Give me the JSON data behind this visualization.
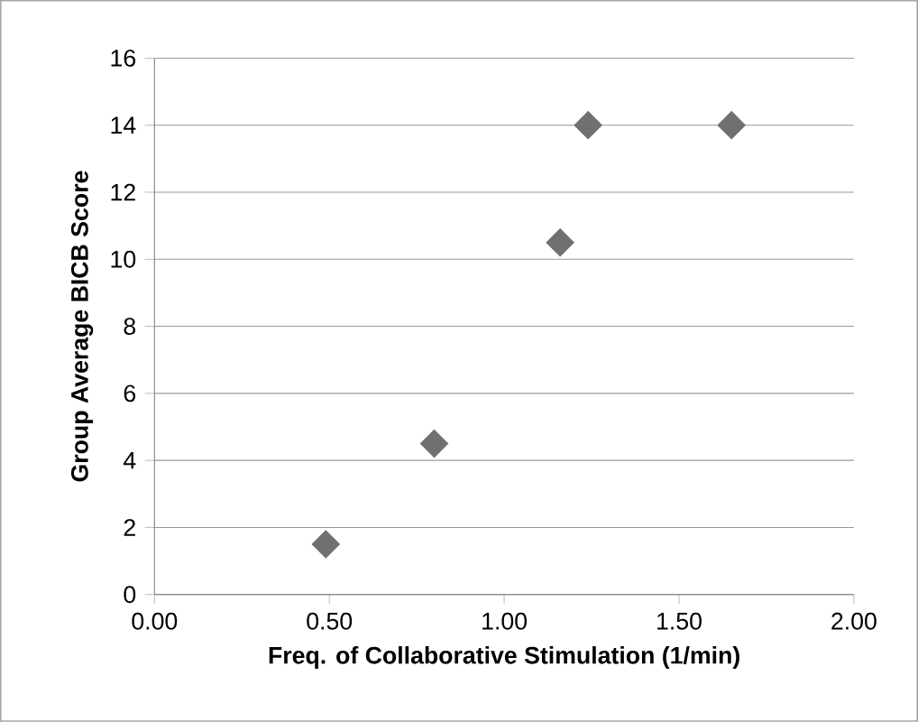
{
  "chart_data": {
    "type": "scatter",
    "xlabel": "Freq. of Collaborative Stimulation (1/min)",
    "ylabel": "Group Average BICB  Score",
    "x": [
      0.49,
      0.8,
      1.16,
      1.24,
      1.65
    ],
    "series": [
      {
        "color": "#707070",
        "values": [
          1.5,
          4.5,
          10.5,
          14,
          14
        ]
      }
    ],
    "xlim": [
      0,
      2
    ],
    "ylim": [
      0,
      16
    ],
    "xticks": [
      {
        "value": 0,
        "label": "0.00"
      },
      {
        "value": 0.5,
        "label": "0.50"
      },
      {
        "value": 1,
        "label": "1.00"
      },
      {
        "value": 1.5,
        "label": "1.50"
      },
      {
        "value": 2,
        "label": "2.00"
      }
    ],
    "yticks": [
      0,
      2,
      4,
      6,
      8,
      10,
      12,
      14,
      16
    ],
    "grid": "y",
    "marker": "diamond"
  }
}
